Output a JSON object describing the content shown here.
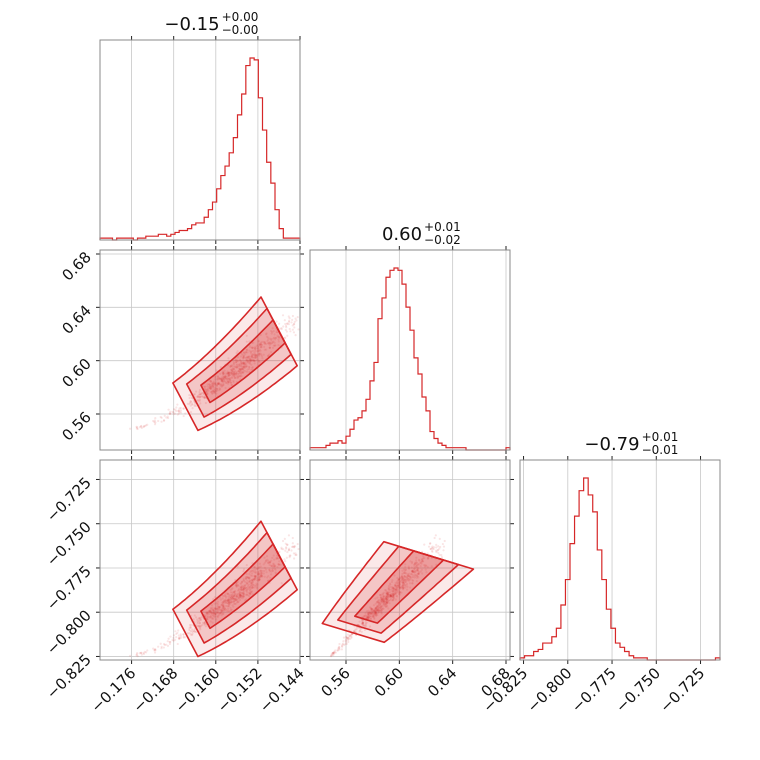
{
  "chart_data": {
    "type": "corner",
    "color": "#d62728",
    "panel_titles": [
      {
        "value": "−0.15",
        "plus": "+0.00",
        "minus": "−0.00"
      },
      {
        "value": "0.60",
        "plus": "+0.01",
        "minus": "−0.02"
      },
      {
        "value": "−0.79",
        "plus": "+0.01",
        "minus": "−0.01"
      }
    ],
    "parameters": [
      {
        "range": [
          -0.182,
          -0.144
        ],
        "ticks": [
          -0.176,
          -0.168,
          -0.16,
          -0.152,
          -0.144
        ],
        "tick_labels": [
          "−0.176",
          "−0.168",
          "−0.160",
          "−0.152",
          "−0.144"
        ]
      },
      {
        "range": [
          0.533,
          0.683
        ],
        "ticks": [
          0.56,
          0.6,
          0.64,
          0.68
        ],
        "tick_labels": [
          "0.56",
          "0.60",
          "0.64",
          "0.68"
        ]
      },
      {
        "range": [
          -0.827,
          -0.714
        ],
        "ticks": [
          -0.825,
          -0.8,
          -0.775,
          -0.75,
          -0.725
        ],
        "tick_labels": [
          "−0.825",
          "−0.800",
          "−0.775",
          "−0.750",
          "−0.725"
        ]
      }
    ],
    "histograms": [
      {
        "param": 0,
        "edges": [
          -0.182,
          -0.144
        ],
        "counts": [
          1,
          1,
          1,
          0,
          1,
          1,
          1,
          1,
          0,
          1,
          1,
          2,
          2,
          2,
          3,
          3,
          2,
          3,
          4,
          5,
          5,
          6,
          8,
          9,
          9,
          12,
          16,
          20,
          27,
          34,
          39,
          46,
          54,
          66,
          77,
          92,
          96,
          95,
          75,
          58,
          41,
          30,
          16,
          6,
          1,
          1,
          1,
          1
        ]
      },
      {
        "param": 1,
        "edges": [
          0.533,
          0.683
        ],
        "counts": [
          1,
          1,
          1,
          1,
          2,
          3,
          3,
          4,
          3,
          6,
          9,
          13,
          14,
          17,
          22,
          30,
          38,
          57,
          66,
          75,
          78,
          79,
          78,
          72,
          62,
          52,
          40,
          33,
          23,
          17,
          8,
          5,
          3,
          2,
          1,
          1,
          1,
          1,
          1,
          0,
          0,
          0,
          0,
          0,
          0,
          0,
          0,
          0,
          0,
          1
        ]
      },
      {
        "param": 2,
        "edges": [
          -0.827,
          -0.714
        ],
        "counts": [
          1,
          2,
          2,
          4,
          5,
          8,
          8,
          11,
          15,
          26,
          38,
          55,
          68,
          80,
          86,
          78,
          70,
          52,
          38,
          24,
          15,
          8,
          6,
          4,
          2,
          1,
          1,
          1,
          0,
          0,
          0,
          0,
          0,
          0,
          0,
          0,
          0,
          0,
          0,
          0,
          0,
          0,
          0,
          1
        ]
      }
    ],
    "scatter_panels": [
      {
        "x_param": 0,
        "y_param": 1
      },
      {
        "x_param": 0,
        "y_param": 2
      },
      {
        "x_param": 1,
        "y_param": 2
      }
    ],
    "contour_levels": 3
  }
}
